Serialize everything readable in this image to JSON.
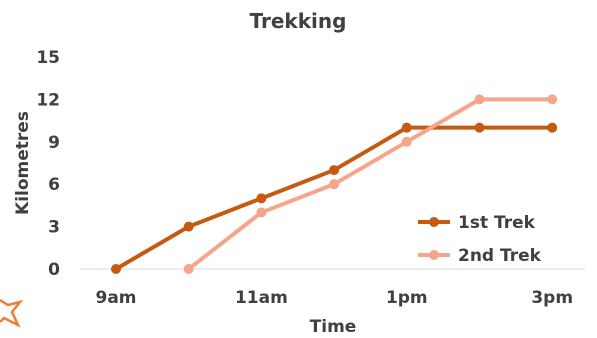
{
  "chart_data": {
    "type": "line",
    "title": "Trekking",
    "xlabel": "Time",
    "ylabel": "Kilometres",
    "x_tick_labels": [
      "9am",
      "11am",
      "1pm",
      "3pm"
    ],
    "y_tick_labels": [
      "0",
      "3",
      "6",
      "9",
      "12",
      "15"
    ],
    "ylim": [
      0,
      15
    ],
    "grid": false,
    "legend_position": "bottom-right",
    "series": [
      {
        "name": "1st Trek",
        "color": "#C55A11",
        "points": [
          {
            "x": "9:00",
            "y": 0
          },
          {
            "x": "10:00",
            "y": 3
          },
          {
            "x": "11:00",
            "y": 5
          },
          {
            "x": "12:00",
            "y": 7
          },
          {
            "x": "13:00",
            "y": 10
          },
          {
            "x": "14:00",
            "y": 10
          },
          {
            "x": "15:00",
            "y": 10
          }
        ]
      },
      {
        "name": "2nd Trek",
        "color": "#F4A58A",
        "points": [
          {
            "x": "10:00",
            "y": 0
          },
          {
            "x": "11:00",
            "y": 4
          },
          {
            "x": "12:00",
            "y": 6
          },
          {
            "x": "13:00",
            "y": 9
          },
          {
            "x": "14:00",
            "y": 12
          },
          {
            "x": "15:00",
            "y": 12
          }
        ]
      }
    ]
  }
}
